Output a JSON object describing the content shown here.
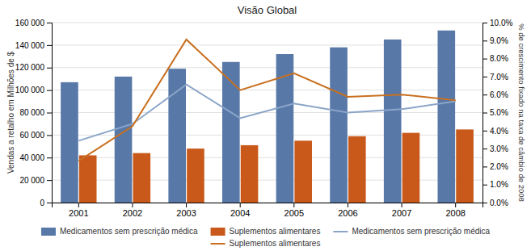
{
  "chart_data": {
    "type": "bar",
    "title": "Visão Global",
    "categories": [
      "2001",
      "2002",
      "2003",
      "2004",
      "2005",
      "2006",
      "2007",
      "2008"
    ],
    "series": [
      {
        "name": "Medicamentos sem prescrição médica",
        "type": "bar",
        "color": "#5878A8",
        "values": [
          107000,
          112000,
          119000,
          125000,
          132000,
          138000,
          145000,
          153000
        ]
      },
      {
        "name": "Suplementos alimentares",
        "type": "bar",
        "color": "#C8591A",
        "values": [
          42000,
          44000,
          48000,
          51000,
          55000,
          59000,
          62000,
          65000
        ]
      },
      {
        "name": "Medicamentos sem prescrição médica",
        "type": "line",
        "color": "#8BA5C8",
        "values": [
          55000,
          70000,
          105000,
          75000,
          88000,
          80000,
          83000,
          90000
        ]
      },
      {
        "name": "Suplementos alimentares",
        "type": "line",
        "color": "#C87020",
        "values": [
          37000,
          68000,
          145000,
          100000,
          115000,
          94000,
          96000,
          91000
        ]
      }
    ],
    "ylabel": "Vendas a retalho em Milhões de $",
    "y2label": "% de crescimento fixado na taxa de câmbio de 2008",
    "ylim": [
      0,
      160000
    ],
    "yticks": [
      0,
      {
        "value": 20000,
        "label": "20 000"
      },
      {
        "value": 40000,
        "label": "40 000"
      },
      {
        "value": 60000,
        "label": "60 000"
      },
      {
        "value": 80000,
        "label": "80 000"
      },
      {
        "value": 100000,
        "label": "100 000"
      },
      {
        "value": 120000,
        "label": "120 000"
      },
      {
        "value": 140000,
        "label": "140 000"
      },
      {
        "value": 160000,
        "label": "160 000"
      }
    ],
    "y2lim": [
      0.0,
      0.1
    ],
    "y2ticks": [
      {
        "value": 0.0,
        "label": "0.0%"
      },
      {
        "value": 0.01,
        "label": "1.0%"
      },
      {
        "value": 0.02,
        "label": "2.0%"
      },
      {
        "value": 0.03,
        "label": "3.0%"
      },
      {
        "value": 0.04,
        "label": "4.0%"
      },
      {
        "value": 0.05,
        "label": "5.0%"
      },
      {
        "value": 0.06,
        "label": "6.0%"
      },
      {
        "value": 0.07,
        "label": "7.0%"
      },
      {
        "value": 0.08,
        "label": "8.0%"
      },
      {
        "value": 0.09,
        "label": "9.0%"
      },
      {
        "value": 0.1,
        "label": "10.0%"
      }
    ],
    "grid": true,
    "legend": "bottom"
  }
}
